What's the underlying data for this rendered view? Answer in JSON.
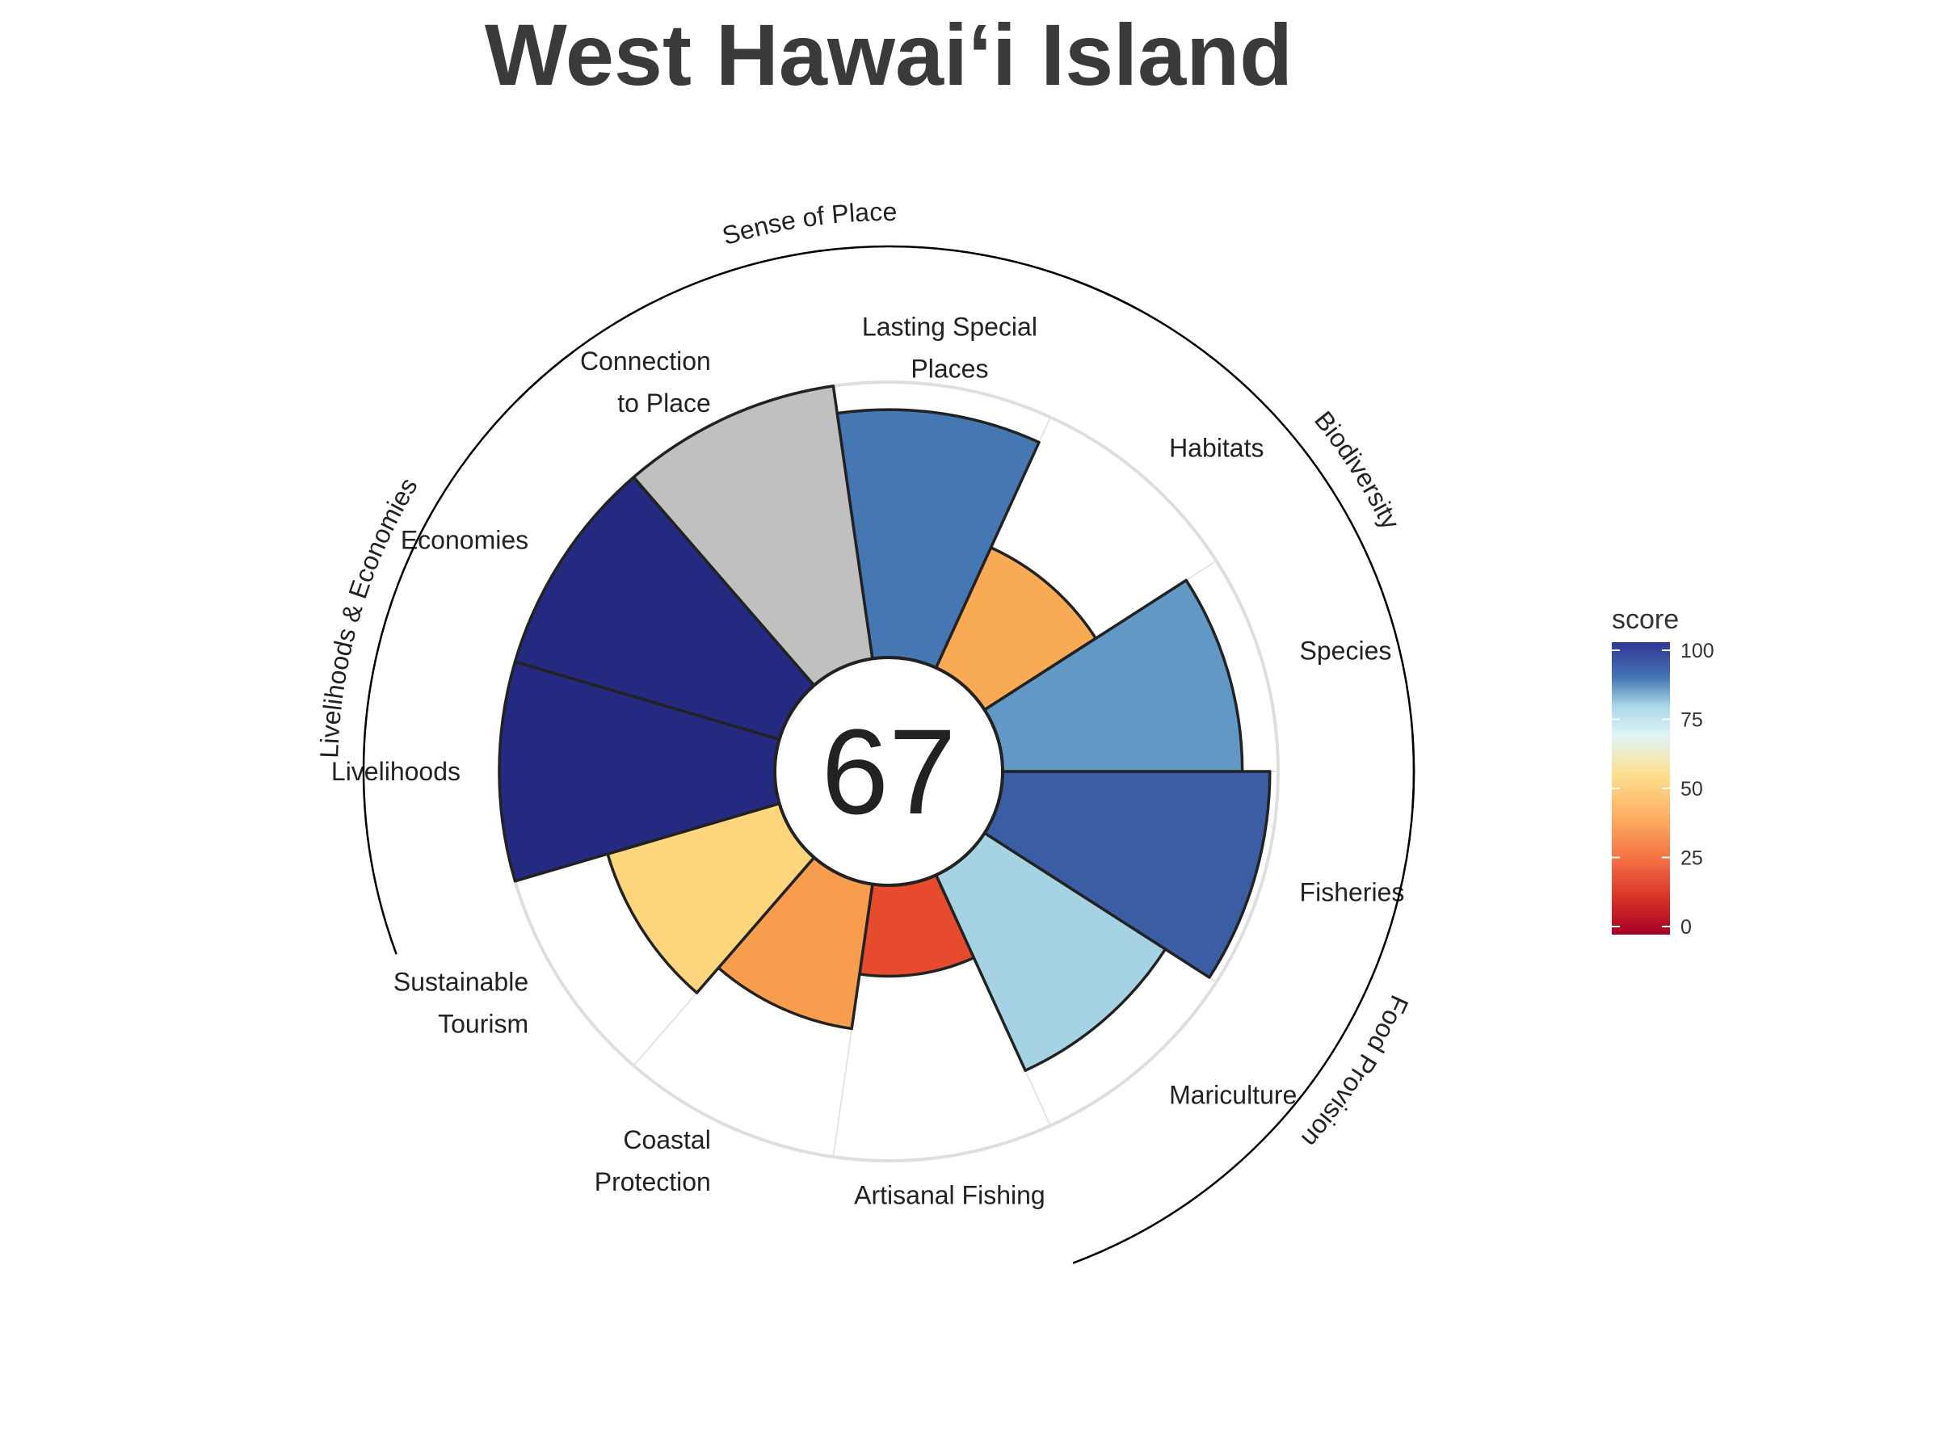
{
  "chart_data": {
    "type": "polar-bar",
    "title": "West Hawai‘i Island",
    "center_score": "67",
    "scale": {
      "min": 0,
      "max": 100
    },
    "goals": [
      {
        "key": "fisheries",
        "label": [
          "Fisheries"
        ],
        "score": 97,
        "color": "#3B5DA4",
        "group": "food"
      },
      {
        "key": "mariculture",
        "label": [
          "Mariculture"
        ],
        "score": 78,
        "color": "#A5D3E3",
        "group": "food"
      },
      {
        "key": "artisanal",
        "label": [
          "Artisanal Fishing"
        ],
        "score": 33,
        "color": "#E64B2E",
        "group": "none"
      },
      {
        "key": "coastal",
        "label": [
          "Coastal",
          "Protection"
        ],
        "score": 53,
        "color": "#F89D4E",
        "group": "none"
      },
      {
        "key": "tourism",
        "label": [
          "Sustainable",
          "Tourism"
        ],
        "score": 65,
        "color": "#FCD57D",
        "group": "none"
      },
      {
        "key": "livelihoods",
        "label": [
          "Livelihoods"
        ],
        "score": 100,
        "color": "#232A80",
        "group": "le"
      },
      {
        "key": "economies",
        "label": [
          "Economies"
        ],
        "score": 100,
        "color": "#232A80",
        "group": "le"
      },
      {
        "key": "connection",
        "label": [
          "Connection",
          "to Place"
        ],
        "score": 100,
        "color": "#C0C0C0",
        "group": "sp"
      },
      {
        "key": "lsp",
        "label": [
          "Lasting Special",
          "Places"
        ],
        "score": 90,
        "color": "#4578B2",
        "group": "sp"
      },
      {
        "key": "habitats",
        "label": [
          "Habitats"
        ],
        "score": 48,
        "color": "#F9AA55",
        "group": "bd"
      },
      {
        "key": "species",
        "label": [
          "Species"
        ],
        "score": 87,
        "color": "#6198C6",
        "group": "bd"
      }
    ],
    "groups": [
      {
        "key": "food",
        "label": "Food Provision"
      },
      {
        "key": "le",
        "label": "Livelihoods & Economies"
      },
      {
        "key": "sp",
        "label": "Sense of Place"
      },
      {
        "key": "bd",
        "label": "Biodiversity"
      }
    ],
    "legend": {
      "title": "score",
      "ticks": [
        "0",
        "25",
        "50",
        "75",
        "100"
      ]
    }
  }
}
